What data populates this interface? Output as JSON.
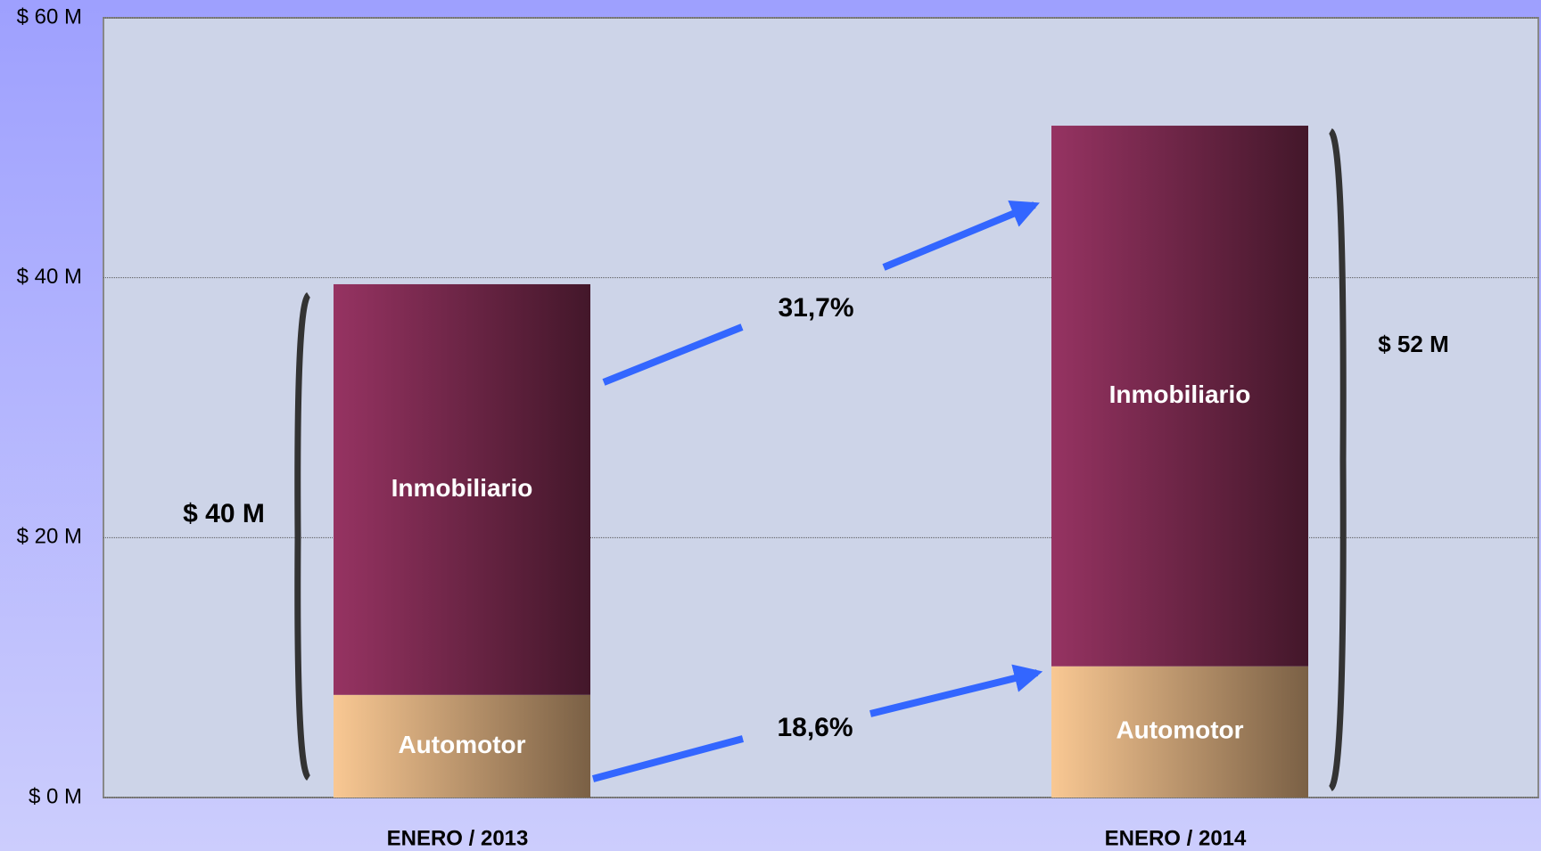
{
  "chart_data": {
    "type": "stacked_bar",
    "categories": [
      "ENERO / 2013",
      "ENERO / 2014"
    ],
    "series": [
      {
        "name": "Automotor",
        "color": "#f9c893",
        "values": [
          7.9,
          10.1
        ]
      },
      {
        "name": "Inmobiliario",
        "color": "#963362",
        "values": [
          31.6,
          41.6
        ]
      }
    ],
    "ylim": [
      0,
      60
    ],
    "yticks": [
      {
        "value": 0,
        "label": "$ 0 M"
      },
      {
        "value": 20,
        "label": "$ 20 M"
      },
      {
        "value": 40,
        "label": "$ 40 M"
      },
      {
        "value": 60,
        "label": "$ 60 M"
      }
    ],
    "grid": true,
    "annotations": [
      "$ 40 M",
      "$ 52 M",
      "31,7%",
      "18,6%"
    ]
  }
}
